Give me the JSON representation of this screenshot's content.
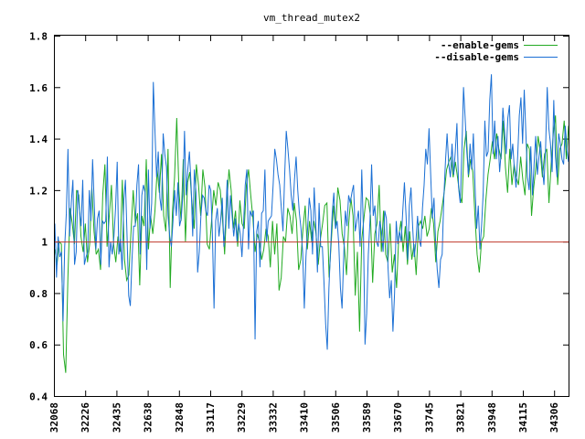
{
  "chart_data": {
    "type": "line",
    "title": "vm_thread_mutex2",
    "xlabel": "",
    "ylabel": "",
    "ylim": [
      0.4,
      1.8
    ],
    "yticks": [
      "0.4",
      "0.6",
      "0.8",
      "1",
      "1.2",
      "1.4",
      "1.6",
      "1.8"
    ],
    "xtick_labels": [
      "32068",
      "32226",
      "32435",
      "32638",
      "32848",
      "33117",
      "33229",
      "33332",
      "33410",
      "33506",
      "33589",
      "33670",
      "33745",
      "33821",
      "33948",
      "34115",
      "34306"
    ],
    "grid": false,
    "legend_position": "top-right",
    "reference_line": {
      "value": 1.0,
      "color": "#c0392b"
    },
    "series": [
      {
        "name": "--enable-gems",
        "color": "#22aa22",
        "values": [
          0.97,
          0.91,
          1.0,
          0.99,
          0.56,
          0.49,
          0.86,
          1.13,
          1.07,
          0.99,
          1.2,
          1.18,
          1.02,
          0.96,
          1.07,
          0.92,
          0.99,
          1.21,
          1.04,
          0.95,
          0.97,
          0.89,
          1.18,
          1.3,
          0.98,
          1.1,
          1.22,
          0.99,
          0.92,
          1.02,
          0.96,
          1.24,
          0.93,
          0.85,
          0.87,
          1.04,
          1.2,
          1.07,
          1.11,
          0.83,
          1.1,
          1.06,
          1.32,
          0.97,
          1.1,
          1.03,
          1.12,
          1.28,
          1.19,
          1.34,
          1.1,
          1.04,
          1.36,
          0.82,
          1.11,
          1.25,
          1.48,
          1.2,
          1.08,
          1.32,
          1.0,
          1.23,
          1.27,
          1.15,
          1.05,
          1.3,
          1.22,
          1.1,
          1.28,
          1.21,
          0.99,
          0.97,
          1.08,
          1.2,
          1.14,
          1.23,
          1.2,
          1.09,
          0.95,
          1.15,
          1.28,
          1.2,
          1.05,
          1.12,
          0.98,
          1.16,
          1.07,
          1.05,
          1.22,
          1.28,
          1.18,
          1.09,
          0.96,
          1.03,
          1.0,
          0.93,
          0.97,
          1.05,
          1.02,
          0.9,
          1.08,
          0.95,
          1.07,
          0.81,
          0.86,
          1.02,
          1.0,
          1.13,
          1.1,
          1.03,
          1.15,
          1.08,
          0.89,
          0.93,
          1.05,
          1.14,
          0.97,
          1.08,
          1.0,
          1.08,
          1.03,
          0.91,
          1.01,
          1.07,
          1.14,
          1.15,
          0.86,
          1.0,
          1.14,
          1.05,
          1.21,
          1.16,
          1.03,
          0.98,
          0.87,
          1.07,
          1.17,
          1.1,
          0.79,
          0.96,
          0.65,
          1.01,
          1.09,
          1.17,
          1.16,
          1.1,
          0.84,
          1.03,
          1.07,
          1.22,
          0.96,
          1.12,
          0.95,
          0.92,
          1.07,
          0.88,
          0.95,
          0.82,
          1.02,
          1.08,
          0.96,
          1.06,
          0.91,
          1.04,
          0.93,
          0.99,
          0.87,
          1.06,
          1.08,
          1.05,
          1.1,
          1.02,
          1.05,
          1.13,
          1.07,
          0.92,
          1.04,
          1.08,
          1.14,
          1.2,
          1.28,
          1.31,
          1.33,
          1.25,
          1.31,
          1.25,
          1.18,
          1.15,
          1.36,
          1.43,
          1.25,
          1.32,
          1.27,
          1.1,
          0.95,
          0.88,
          1.0,
          1.02,
          1.16,
          1.26,
          1.32,
          1.39,
          1.32,
          1.42,
          1.36,
          1.32,
          1.47,
          1.29,
          1.19,
          1.36,
          1.22,
          1.3,
          1.25,
          1.22,
          1.33,
          1.24,
          1.18,
          1.38,
          1.36,
          1.1,
          1.21,
          1.29,
          1.41,
          1.35,
          1.25,
          1.34,
          1.36,
          1.15,
          1.3,
          1.42,
          1.49,
          1.22,
          1.36,
          1.38,
          1.47,
          1.32,
          1.45
        ]
      },
      {
        "name": "--disable-gems",
        "color": "#1a6fd4",
        "values": [
          1.07,
          0.86,
          1.02,
          0.94,
          0.96,
          0.69,
          0.98,
          1.11,
          1.36,
          1.02,
          1.15,
          1.24,
          0.91,
          0.96,
          1.2,
          1.12,
          1.06,
          1.24,
          0.91,
          0.94,
          0.96,
          1.2,
          1.08,
          1.32,
          1.15,
          0.97,
          1.09,
          1.12,
          0.91,
          1.08,
          1.07,
          1.08,
          1.33,
          0.9,
          1.0,
          0.95,
          1.02,
          1.13,
          1.31,
          0.95,
          1.01,
          0.89,
          1.16,
          1.24,
          1.02,
          0.79,
          0.75,
          0.93,
          1.06,
          1.06,
          1.22,
          1.3,
          0.95,
          1.18,
          1.22,
          1.19,
          0.89,
          1.28,
          1.05,
          1.15,
          1.62,
          1.43,
          1.25,
          1.35,
          1.17,
          1.12,
          1.42,
          1.34,
          1.29,
          1.1,
          1.02,
          0.98,
          1.08,
          1.2,
          1.1,
          1.23,
          1.06,
          1.09,
          1.18,
          1.43,
          1.18,
          1.28,
          1.35,
          1.22,
          1.02,
          1.28,
          1.19,
          0.88,
          0.96,
          1.1,
          1.18,
          1.17,
          1.12,
          1.1,
          1.22,
          1.2,
          1.03,
          0.74,
          1.08,
          1.13,
          1.02,
          1.08,
          1.17,
          0.98,
          1.07,
          1.24,
          1.05,
          1.18,
          1.1,
          1.02,
          1.09,
          1.0,
          1.07,
          1.03,
          0.94,
          1.07,
          1.22,
          1.28,
          0.97,
          1.12,
          1.1,
          1.12,
          0.62,
          1.04,
          1.08,
          0.9,
          1.11,
          1.12,
          1.28,
          1.0,
          1.08,
          1.09,
          1.1,
          1.22,
          1.36,
          1.32,
          1.26,
          1.22,
          1.13,
          1.04,
          1.25,
          1.43,
          1.36,
          1.28,
          1.18,
          1.12,
          1.24,
          1.33,
          1.2,
          1.11,
          1.05,
          0.96,
          0.74,
          0.94,
          1.05,
          1.17,
          1.12,
          0.95,
          1.21,
          1.07,
          0.88,
          1.15,
          0.98,
          0.98,
          0.84,
          0.68,
          0.58,
          0.82,
          0.97,
          1.11,
          1.19,
          1.05,
          1.08,
          0.99,
          0.82,
          0.74,
          0.94,
          1.12,
          1.06,
          1.18,
          1.15,
          1.19,
          1.22,
          1.04,
          1.08,
          1.12,
          0.98,
          1.28,
          1.05,
          0.6,
          0.72,
          0.95,
          1.08,
          1.3,
          1.1,
          1.14,
          1.0,
          0.98,
          1.08,
          1.04,
          0.96,
          1.12,
          1.09,
          0.9,
          0.78,
          0.85,
          0.65,
          0.8,
          1.08,
          0.99,
          1.04,
          1.0,
          1.12,
          1.23,
          1.1,
          0.93,
          1.14,
          1.21,
          1.06,
          0.94,
          1.0,
          1.1,
          1.01,
          0.98,
          1.13,
          1.22,
          1.36,
          1.3,
          1.44,
          1.26,
          1.09,
          1.17,
          1.0,
          0.89,
          0.82,
          0.93,
          0.95,
          1.17,
          1.31,
          1.42,
          1.3,
          1.25,
          1.38,
          1.26,
          1.35,
          1.46,
          1.21,
          1.15,
          1.35,
          1.6,
          1.48,
          1.35,
          1.26,
          1.38,
          1.28,
          1.42,
          1.22,
          1.05,
          1.14,
          0.97,
          1.06,
          1.19,
          1.47,
          1.33,
          1.35,
          1.55,
          1.65,
          1.34,
          1.47,
          1.32,
          1.41,
          1.27,
          1.35,
          1.52,
          1.43,
          1.34,
          1.48,
          1.53,
          1.32,
          1.38,
          1.28,
          1.21,
          1.33,
          1.49,
          1.56,
          1.38,
          1.59,
          1.42,
          1.25,
          1.2,
          1.37,
          1.18,
          1.3,
          1.41,
          1.26,
          1.33,
          1.39,
          1.29,
          1.22,
          1.36,
          1.6,
          1.44,
          1.38,
          1.27,
          1.55,
          1.33,
          1.25,
          1.42,
          1.38,
          1.32,
          1.3,
          1.45,
          1.36,
          1.31
        ]
      }
    ]
  }
}
